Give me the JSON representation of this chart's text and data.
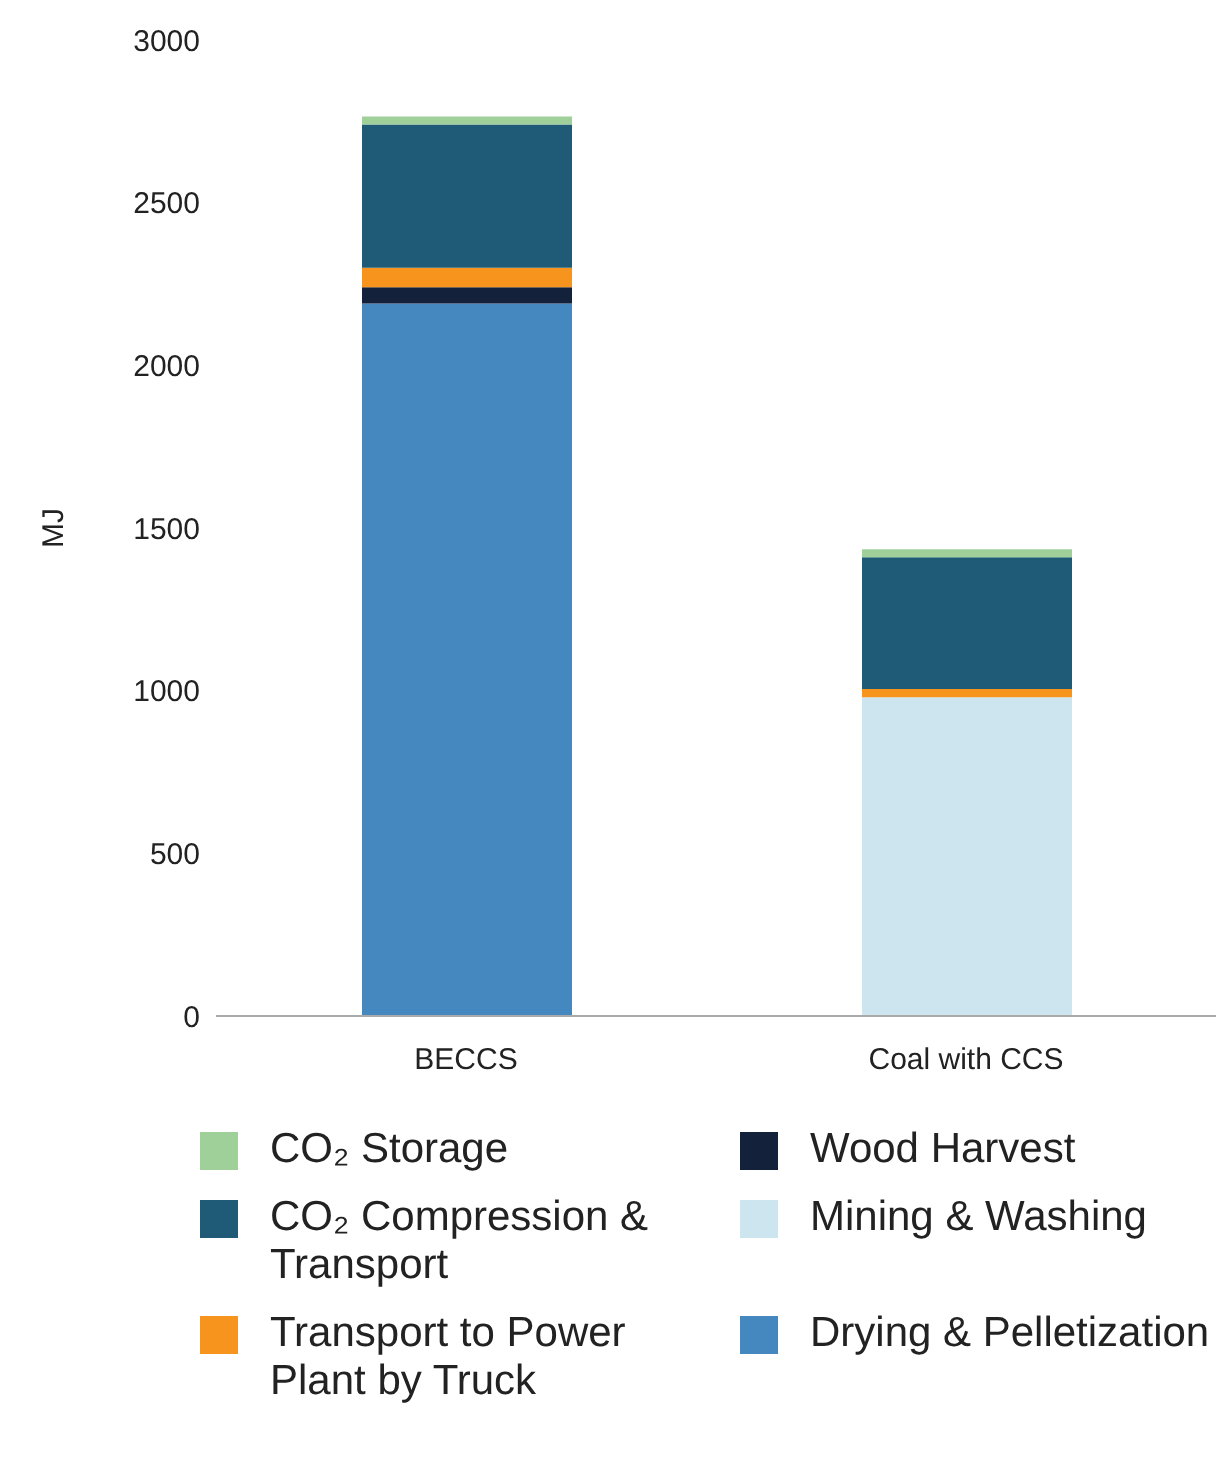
{
  "chart_data": {
    "type": "bar",
    "stacked": true,
    "ylabel": "MJ",
    "categories": [
      "BECCS",
      "Coal with CCS"
    ],
    "series": [
      {
        "name": "Drying & Pelletization",
        "color": "#4588c0",
        "values": [
          2190,
          null
        ]
      },
      {
        "name": "Mining & Washing",
        "color": "#cce5ef",
        "values": [
          null,
          980
        ]
      },
      {
        "name": "Wood Harvest",
        "color": "#13213a",
        "values": [
          50,
          null
        ]
      },
      {
        "name": "Transport to Power Plant by Truck",
        "color": "#f7941d",
        "values": [
          60,
          25
        ]
      },
      {
        "name": "CO₂ Compression & Transport",
        "color": "#1f5a76",
        "values": [
          440,
          405
        ]
      },
      {
        "name": "CO₂ Storage",
        "color": "#9fd09a",
        "values": [
          25,
          25
        ]
      }
    ],
    "ylim": [
      0,
      3000
    ],
    "yticks": [
      0,
      500,
      1000,
      1500,
      2000,
      2500,
      3000
    ],
    "grid": false,
    "legend": "bottom"
  }
}
